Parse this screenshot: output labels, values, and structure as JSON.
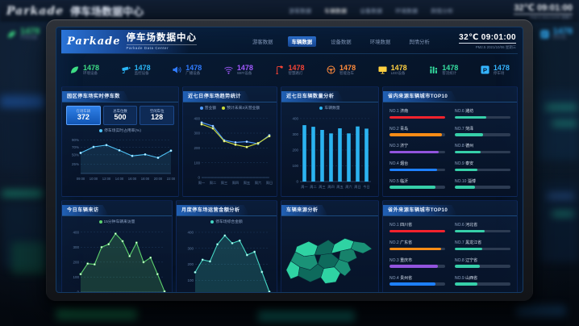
{
  "background": {
    "brand": "Parkade",
    "title": "停车场数据中心",
    "temp": "32℃",
    "time": "09:01:00",
    "sub": "PM2.5  2021/10/06 星期三"
  },
  "header": {
    "brand": "Parkade",
    "title": "停车场数据中心",
    "subtitle": "Parkade Data Center",
    "nav": [
      {
        "label": "游客数据",
        "active": false
      },
      {
        "label": "车辆数据",
        "active": true
      },
      {
        "label": "设备数据",
        "active": false
      },
      {
        "label": "环境数据",
        "active": false
      },
      {
        "label": "舆情分析",
        "active": false
      }
    ],
    "temp": "32℃",
    "time": "09:01:00",
    "pm": "PM2.5",
    "date": "2021/10/06 星期三"
  },
  "stats": [
    {
      "icon": "leaf-icon",
      "value": "1478",
      "label": "环境设备",
      "color": "#3ddc84"
    },
    {
      "icon": "camera-icon",
      "value": "1478",
      "label": "监控设备",
      "color": "#29b6f6"
    },
    {
      "icon": "speaker-icon",
      "value": "1478",
      "label": "广播设备",
      "color": "#2f7bff"
    },
    {
      "icon": "wifi-icon",
      "value": "1478",
      "label": "WIFI设备",
      "color": "#a259ff"
    },
    {
      "icon": "streetlamp-icon",
      "value": "1478",
      "label": "智慧路灯",
      "color": "#f44336"
    },
    {
      "icon": "steering-wheel-icon",
      "value": "1478",
      "label": "智能泊车",
      "color": "#ff8a3c"
    },
    {
      "icon": "led-screen-icon",
      "value": "1478",
      "label": "LED设备",
      "color": "#ffd040"
    },
    {
      "icon": "passenger-flow-icon",
      "value": "1478",
      "label": "客流统计",
      "color": "#35e0a1"
    },
    {
      "icon": "parking-icon",
      "value": "1478",
      "label": "停车场",
      "color": "#34b4ff"
    }
  ],
  "panels": {
    "realtime": {
      "title": "园区停车场实时停车数",
      "boxes": [
        {
          "label": "在场车辆",
          "value": "372"
        },
        {
          "label": "总车位数",
          "value": "500"
        },
        {
          "label": "空闲车位",
          "value": "128"
        }
      ]
    },
    "weekly_revenue": {
      "title": "近七日停车场趋势统计"
    },
    "weekly_vehicles": {
      "title": "近七日车辆数量分析"
    },
    "top_in": {
      "title": "省内来源车辆城市TOP10",
      "items": [
        {
          "rank": "NO.1",
          "name": "济南",
          "color": "#f5222d",
          "percent": 100
        },
        {
          "rank": "NO.2",
          "name": "青岛",
          "color": "#fa8c16",
          "percent": 94
        },
        {
          "rank": "NO.3",
          "name": "济宁",
          "color": "#9254de",
          "percent": 89
        },
        {
          "rank": "NO.4",
          "name": "烟台",
          "color": "#1e80ff",
          "percent": 86
        },
        {
          "rank": "NO.5",
          "name": "临沂",
          "color": "#36cfa9",
          "percent": 82
        },
        {
          "rank": "NO.6",
          "name": "潍坊",
          "color": "#36cfa9",
          "percent": 56
        },
        {
          "rank": "NO.7",
          "name": "菏泽",
          "color": "#36cfa9",
          "percent": 50
        },
        {
          "rank": "NO.8",
          "name": "德州",
          "color": "#36cfa9",
          "percent": 46
        },
        {
          "rank": "NO.9",
          "name": "泰安",
          "color": "#36cfa9",
          "percent": 40
        },
        {
          "rank": "NO.10",
          "name": "淄博",
          "color": "#36cfa9",
          "percent": 36
        }
      ]
    },
    "today": {
      "title": "今日车辆来访"
    },
    "monthly": {
      "title": "月度停车场运营金额分析"
    },
    "map": {
      "title": "车辆来源分析",
      "legend": [
        {
          "label": "10万以上",
          "color": "#3be3b0"
        },
        {
          "label": "5~10万",
          "color": "#27b18c"
        },
        {
          "label": "1~5万",
          "color": "#17826b"
        },
        {
          "label": "0~1万",
          "color": "#0d5a50"
        }
      ]
    },
    "top_out": {
      "title": "省外来源车辆城市TOP10",
      "items": [
        {
          "rank": "NO.1",
          "name": "四川省",
          "color": "#f5222d",
          "percent": 100
        },
        {
          "rank": "NO.2",
          "name": "广东省",
          "color": "#fa8c16",
          "percent": 93
        },
        {
          "rank": "NO.3",
          "name": "重庆市",
          "color": "#9254de",
          "percent": 87
        },
        {
          "rank": "NO.4",
          "name": "贵州省",
          "color": "#1e80ff",
          "percent": 83
        },
        {
          "rank": "NO.5",
          "name": "广西壮族自治区",
          "color": "#36cfa9",
          "percent": 79
        },
        {
          "rank": "NO.6",
          "name": "河北省",
          "color": "#36cfa9",
          "percent": 54
        },
        {
          "rank": "NO.7",
          "name": "黑龙江省",
          "color": "#36cfa9",
          "percent": 49
        },
        {
          "rank": "NO.8",
          "name": "辽宁省",
          "color": "#36cfa9",
          "percent": 45
        },
        {
          "rank": "NO.9",
          "name": "山西省",
          "color": "#36cfa9",
          "percent": 40
        },
        {
          "rank": "NO.10",
          "name": "河南省",
          "color": "#36cfa9",
          "percent": 34
        }
      ]
    }
  },
  "chart_data": [
    {
      "type": "line",
      "title": "园区停车场实时停车数",
      "x": [
        "09:00",
        "10:00",
        "12:00",
        "14:00",
        "16:00",
        "18:00",
        "20:00",
        "22:00"
      ],
      "series": [
        {
          "name": "停车场实时占用率(%)",
          "color": "#4fc3f7",
          "fill": true,
          "values": [
            55,
            71,
            76,
            62,
            47,
            51,
            42,
            61
          ]
        }
      ],
      "ylim": [
        0,
        95
      ],
      "yticks": [
        [
          90,
          "90%"
        ],
        [
          70,
          "70%"
        ],
        [
          50,
          "50%"
        ],
        [
          25,
          "25%"
        ]
      ]
    },
    {
      "type": "line",
      "title": "近七日停车场趋势统计",
      "x": [
        "周一",
        "周二",
        "周三",
        "周四",
        "周五",
        "周六",
        "周日"
      ],
      "series": [
        {
          "name": "营业额",
          "color": "#4f9bff",
          "values": [
            372,
            348,
            252,
            238,
            242,
            228,
            286
          ]
        },
        {
          "name": "预计未来3天营业额",
          "color": "#cddc39",
          "values": [
            360,
            332,
            246,
            222,
            206,
            232,
            280
          ]
        }
      ],
      "ylim": [
        0,
        420
      ],
      "yticks": [
        [
          400,
          "400"
        ],
        [
          300,
          "300"
        ],
        [
          200,
          "200"
        ],
        [
          100,
          "100"
        ],
        [
          0,
          "0"
        ]
      ]
    },
    {
      "type": "bar",
      "title": "近七日车辆数量分析",
      "x": [
        "周一",
        "周二",
        "周三",
        "周四",
        "周五",
        "周六",
        "周日",
        "今日"
      ],
      "series": [
        {
          "name": "车辆数量",
          "color": "#2bb3f0",
          "values": [
            358,
            348,
            328,
            306,
            338,
            306,
            350,
            336
          ]
        }
      ],
      "ylim": [
        0,
        420
      ],
      "yticks": [
        [
          400,
          "400"
        ],
        [
          300,
          "300"
        ],
        [
          200,
          "200"
        ],
        [
          100,
          "100"
        ],
        [
          0,
          "0"
        ]
      ]
    },
    {
      "type": "area",
      "title": "今日车辆来访",
      "x": [
        "08:00",
        "10:00",
        "12:00",
        "14:00",
        "16:00",
        "18:00",
        "20:00",
        "22:00"
      ],
      "series": [
        {
          "name": "15分钟车辆来访量",
          "color": "#5dd26e",
          "values": [
            120,
            190,
            185,
            300,
            320,
            390,
            340,
            240,
            330,
            200,
            230,
            120,
            5
          ]
        }
      ],
      "ylim": [
        0,
        420
      ],
      "yticks": [
        [
          400,
          "400"
        ],
        [
          300,
          "300"
        ],
        [
          200,
          "200"
        ],
        [
          100,
          "100"
        ],
        [
          0,
          "0"
        ]
      ]
    },
    {
      "type": "area",
      "title": "月度停车场运营金额分析",
      "x": [
        "06.01",
        "06.05",
        "06.11",
        "06.16",
        "06.21",
        "06.26",
        "06.31"
      ],
      "series": [
        {
          "name": "停车场综合金额",
          "color": "#45d6c3",
          "values": [
            150,
            228,
            218,
            325,
            380,
            332,
            348,
            258,
            278,
            152,
            28
          ]
        }
      ],
      "ylim": [
        0,
        420
      ],
      "yticks": [
        [
          400,
          "400"
        ],
        [
          300,
          "300"
        ],
        [
          200,
          "200"
        ],
        [
          100,
          "100"
        ],
        [
          0,
          "0"
        ]
      ]
    }
  ]
}
